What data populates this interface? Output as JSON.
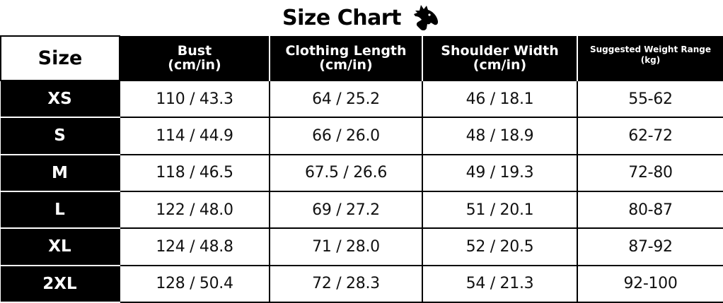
{
  "title": "Size Chart",
  "logo_icon": "horse-head-icon",
  "table": {
    "corner_label": "Size",
    "columns": [
      {
        "line1": "Bust",
        "line2": "(cm/in)"
      },
      {
        "line1": "Clothing Length",
        "line2": "(cm/in)"
      },
      {
        "line1": "Shoulder Width",
        "line2": "(cm/in)"
      },
      {
        "line1": "Suggested Weight Range",
        "line2": "(kg)"
      }
    ],
    "rows": [
      {
        "size": "XS",
        "cells": [
          "110 / 43.3",
          "64 / 25.2",
          "46 / 18.1",
          "55-62"
        ]
      },
      {
        "size": "S",
        "cells": [
          "114 / 44.9",
          "66 / 26.0",
          "48 / 18.9",
          "62-72"
        ]
      },
      {
        "size": "M",
        "cells": [
          "118 / 46.5",
          "67.5 / 26.6",
          "49 / 19.3",
          "72-80"
        ]
      },
      {
        "size": "L",
        "cells": [
          "122 / 48.0",
          "69 / 27.2",
          "51 / 20.1",
          "80-87"
        ]
      },
      {
        "size": "XL",
        "cells": [
          "124 / 48.8",
          "71 / 28.0",
          "52 / 20.5",
          "87-92"
        ]
      },
      {
        "size": "2XL",
        "cells": [
          "128 / 50.4",
          "72 / 28.3",
          "54 / 21.3",
          "92-100"
        ]
      }
    ]
  },
  "colors": {
    "header_bg": "#000000",
    "header_text": "#ffffff",
    "cell_bg": "#ffffff",
    "border": "#000000"
  }
}
